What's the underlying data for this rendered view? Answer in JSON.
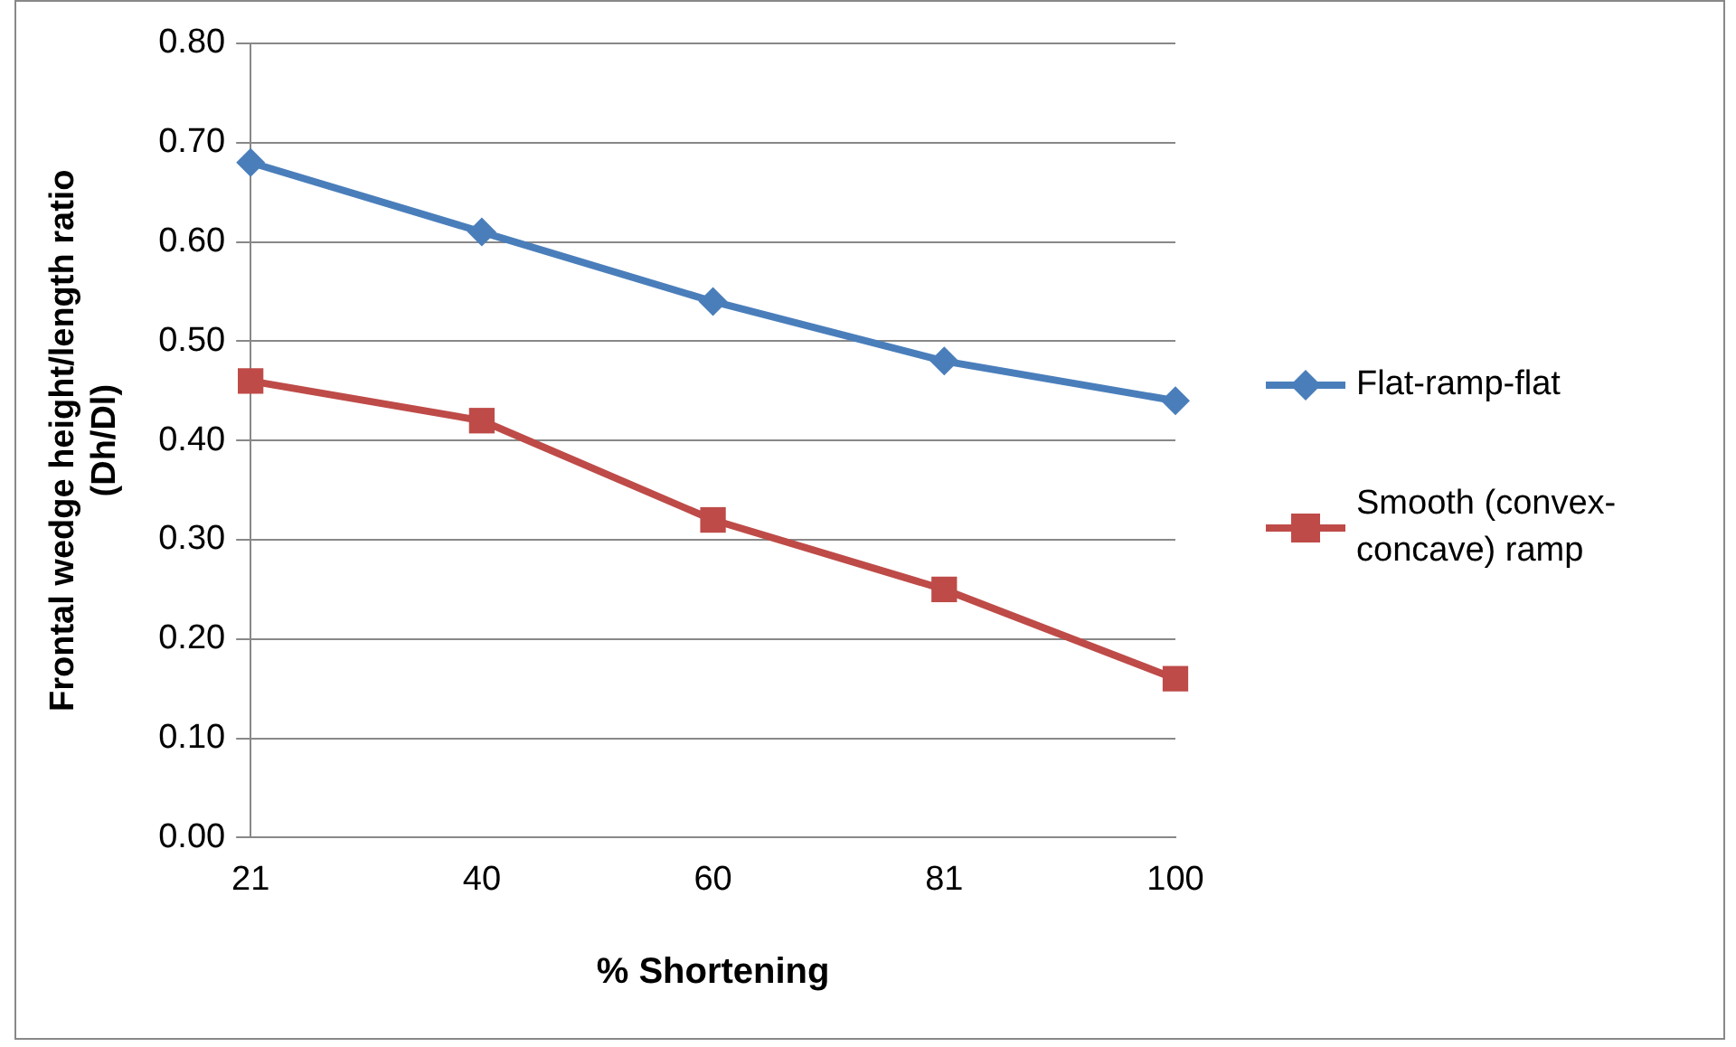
{
  "chart_data": {
    "type": "line",
    "xlabel": "% Shortening",
    "ylabel": "Frontal wedge height/length ratio (Dh/Dl)",
    "categories": [
      "21",
      "40",
      "60",
      "81",
      "100"
    ],
    "series": [
      {
        "name": "Flat-ramp-flat",
        "color": "#4a7ebb",
        "marker": "diamond",
        "values": [
          0.68,
          0.61,
          0.54,
          0.48,
          0.44
        ]
      },
      {
        "name": "Smooth (convex-concave) ramp",
        "color": "#be4b48",
        "marker": "square",
        "values": [
          0.46,
          0.42,
          0.32,
          0.25,
          0.16
        ]
      }
    ],
    "ylim": [
      0,
      0.8
    ],
    "yticks": [
      {
        "value": 0,
        "label": "0.00"
      },
      {
        "value": 0.1,
        "label": "0.10"
      },
      {
        "value": 0.2,
        "label": "0.20"
      },
      {
        "value": 0.3,
        "label": "0.30"
      },
      {
        "value": 0.4,
        "label": "0.40"
      },
      {
        "value": 0.5,
        "label": "0.50"
      },
      {
        "value": 0.6,
        "label": "0.60"
      },
      {
        "value": 0.7,
        "label": "0.70"
      },
      {
        "value": 0.8,
        "label": "0.80"
      }
    ],
    "grid": "y",
    "legend": "right",
    "line_style": "solid"
  }
}
